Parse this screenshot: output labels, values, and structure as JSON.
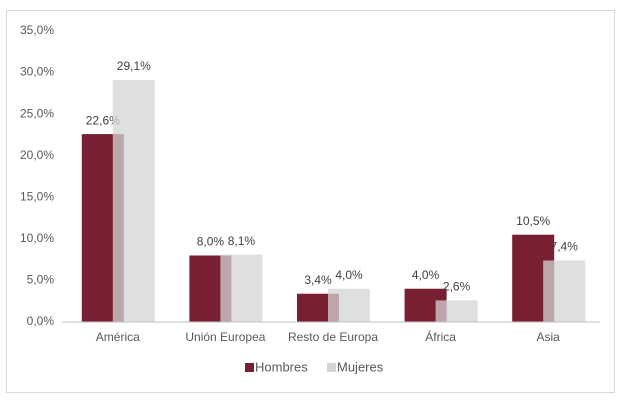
{
  "chart_data": {
    "type": "bar",
    "categories": [
      "América",
      "Unión Europea",
      "Resto de Europa",
      "África",
      "Asia"
    ],
    "series": [
      {
        "name": "Hombres",
        "color": "#782032",
        "values": [
          22.6,
          8.0,
          3.4,
          4.0,
          10.5
        ],
        "value_labels": [
          "22,6%",
          "8,0%",
          "3,4%",
          "4,0%",
          "10,5%"
        ]
      },
      {
        "name": "Mujeres",
        "color": "#d4d4d4",
        "values": [
          29.1,
          8.1,
          4.0,
          2.6,
          7.4
        ],
        "value_labels": [
          "29,1%",
          "8,1%",
          "4,0%",
          "2,6%",
          "7,4%"
        ]
      }
    ],
    "ylim": [
      0,
      35
    ],
    "yticks": [
      {
        "value": 0,
        "label": "0,0%"
      },
      {
        "value": 5,
        "label": "5,0%"
      },
      {
        "value": 10,
        "label": "10,0%"
      },
      {
        "value": 15,
        "label": "15,0%"
      },
      {
        "value": 20,
        "label": "20,0%"
      },
      {
        "value": 25,
        "label": "25,0%"
      },
      {
        "value": 30,
        "label": "30,0%"
      },
      {
        "value": 35,
        "label": "35,0%"
      }
    ],
    "grid": false,
    "legend": "bottom"
  }
}
